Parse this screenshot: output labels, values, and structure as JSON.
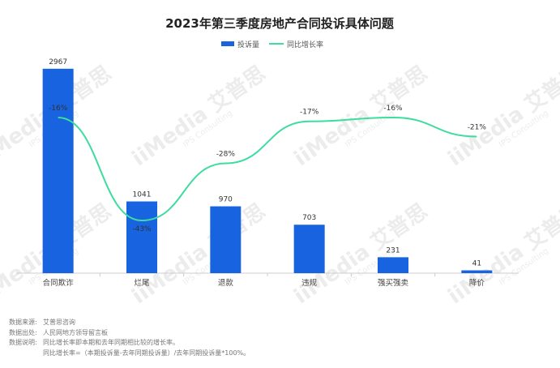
{
  "chart_data": {
    "type": "bar+line",
    "title": "2023年第三季度房地产合同投诉具体问题",
    "categories": [
      "合同欺诈",
      "烂尾",
      "退款",
      "违规",
      "强买强卖",
      "降价"
    ],
    "series": [
      {
        "name": "投诉量",
        "type": "bar",
        "axis": "left",
        "values": [
          2967,
          1041,
          970,
          703,
          231,
          41
        ],
        "labels": [
          "2967",
          "1041",
          "970",
          "703",
          "231",
          "41"
        ]
      },
      {
        "name": "同比增长率",
        "type": "line",
        "axis": "right",
        "values": [
          -16,
          -43,
          -28,
          -17,
          -16,
          -21
        ],
        "labels": [
          "-16%",
          "-43%",
          "-28%",
          "-17%",
          "-16%",
          "-21%"
        ]
      }
    ],
    "ylim_left": [
      0,
      3000
    ],
    "ylim_right": [
      -50,
      0
    ],
    "grid": false,
    "legend_position": "top-center",
    "colors": {
      "bar": "#1763e0",
      "line": "#3ddc9f",
      "axis": "#cccccc"
    }
  },
  "watermark": {
    "brand": "iiMedia 艾普思",
    "sub": "IPS Consulting"
  },
  "footnotes": [
    {
      "label": "数据来源:",
      "text": "艾普思咨询"
    },
    {
      "label": "数据出处:",
      "text": "人民网地方领导留言板"
    },
    {
      "label": "数据说明:",
      "text": "同比增长率即本期和去年同期相比较的增长率。"
    },
    {
      "label": "",
      "text": "同比增长率=（本期投诉量-去年同期投诉量）/去年同期投诉量*100%。"
    }
  ]
}
